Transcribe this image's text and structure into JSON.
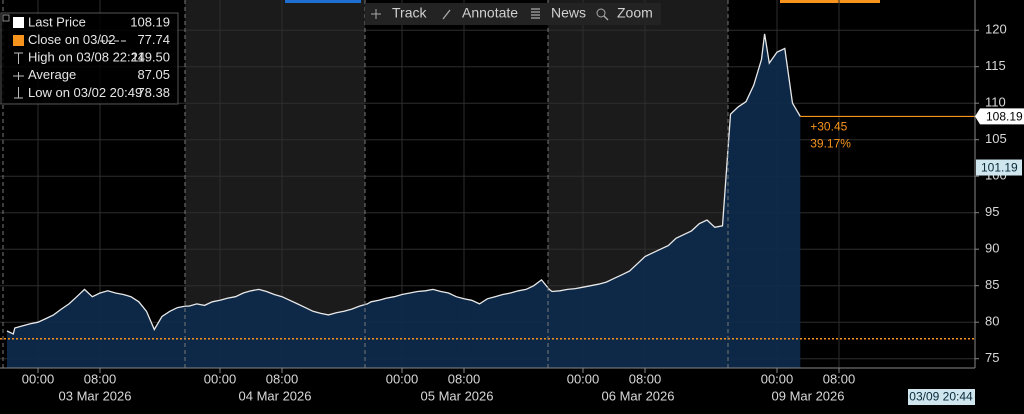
{
  "chart_data": {
    "type": "area",
    "toolbar": [
      "Track",
      "Annotate",
      "News",
      "Zoom"
    ],
    "legend": [
      {
        "name": "Last Price",
        "value": 108.19
      },
      {
        "name": "Close on 03/02",
        "value": 77.74
      },
      {
        "name": "High on 03/08 22:24",
        "value": 119.5,
        "value_label": "119.50"
      },
      {
        "name": "Average",
        "value": 87.05
      },
      {
        "name": "Low on 03/02 20:49",
        "value": 78.38
      }
    ],
    "x": [
      "2026-03-02 20:00",
      "2026-03-02 20:49",
      "2026-03-02 21:00",
      "2026-03-02 22:00",
      "2026-03-02 23:00",
      "2026-03-03 00:00",
      "2026-03-03 01:00",
      "2026-03-03 02:00",
      "2026-03-03 03:00",
      "2026-03-03 04:00",
      "2026-03-03 05:00",
      "2026-03-03 06:00",
      "2026-03-03 07:00",
      "2026-03-03 08:00",
      "2026-03-03 09:00",
      "2026-03-03 10:00",
      "2026-03-03 11:00",
      "2026-03-03 12:00",
      "2026-03-03 13:00",
      "2026-03-03 14:00",
      "2026-03-03 15:00",
      "2026-03-03 16:00",
      "2026-03-03 17:00",
      "2026-03-03 18:00",
      "2026-03-03 19:00",
      "2026-03-03 20:00",
      "2026-03-03 21:00",
      "2026-03-03 22:00",
      "2026-03-03 23:00",
      "2026-03-04 00:00",
      "2026-03-04 01:00",
      "2026-03-04 02:00",
      "2026-03-04 03:00",
      "2026-03-04 04:00",
      "2026-03-04 05:00",
      "2026-03-04 06:00",
      "2026-03-04 07:00",
      "2026-03-04 08:00",
      "2026-03-04 09:00",
      "2026-03-04 10:00",
      "2026-03-04 11:00",
      "2026-03-04 12:00",
      "2026-03-04 13:00",
      "2026-03-04 14:00",
      "2026-03-04 15:00",
      "2026-03-04 16:00",
      "2026-03-04 17:00",
      "2026-03-04 18:00",
      "2026-03-04 19:00",
      "2026-03-04 20:00",
      "2026-03-04 21:00",
      "2026-03-04 22:00",
      "2026-03-04 23:00",
      "2026-03-05 00:00",
      "2026-03-05 01:00",
      "2026-03-05 02:00",
      "2026-03-05 03:00",
      "2026-03-05 04:00",
      "2026-03-05 05:00",
      "2026-03-05 06:00",
      "2026-03-05 07:00",
      "2026-03-05 08:00",
      "2026-03-05 09:00",
      "2026-03-05 10:00",
      "2026-03-05 11:00",
      "2026-03-05 12:00",
      "2026-03-05 13:00",
      "2026-03-05 14:00",
      "2026-03-05 15:00",
      "2026-03-05 16:00",
      "2026-03-05 17:00",
      "2026-03-05 18:00",
      "2026-03-05 19:00",
      "2026-03-05 20:00",
      "2026-03-05 21:00",
      "2026-03-05 22:00",
      "2026-03-05 23:00",
      "2026-03-06 00:00",
      "2026-03-06 01:00",
      "2026-03-06 02:00",
      "2026-03-06 03:00",
      "2026-03-06 04:00",
      "2026-03-06 05:00",
      "2026-03-06 06:00",
      "2026-03-06 07:00",
      "2026-03-06 08:00",
      "2026-03-06 09:00",
      "2026-03-06 10:00",
      "2026-03-06 11:00",
      "2026-03-06 12:00",
      "2026-03-06 13:00",
      "2026-03-06 14:00",
      "2026-03-06 15:00",
      "2026-03-06 16:00",
      "2026-03-06 17:00",
      "2026-03-06 18:00",
      "2026-03-08 18:00",
      "2026-03-08 19:00",
      "2026-03-08 20:00",
      "2026-03-08 21:00",
      "2026-03-08 22:00",
      "2026-03-08 22:24",
      "2026-03-08 23:00",
      "2026-03-09 00:00",
      "2026-03-09 01:00",
      "2026-03-09 02:00",
      "2026-03-09 03:00"
    ],
    "series": [
      {
        "name": "Last Price",
        "color": "#e8e8e8",
        "fill": "#0e2a4a",
        "values": [
          78.8,
          78.38,
          79.2,
          79.5,
          79.8,
          80.0,
          80.5,
          81.0,
          81.8,
          82.5,
          83.5,
          84.5,
          83.5,
          84.0,
          84.3,
          84.0,
          83.8,
          83.5,
          82.8,
          81.5,
          79.0,
          80.8,
          81.5,
          82.0,
          82.2,
          82.2,
          82.5,
          82.3,
          82.8,
          83.0,
          83.3,
          83.5,
          84.0,
          84.3,
          84.5,
          84.2,
          83.8,
          83.5,
          83.0,
          82.5,
          82.0,
          81.5,
          81.2,
          81.0,
          81.3,
          81.5,
          81.8,
          82.2,
          82.5,
          82.8,
          83.0,
          83.3,
          83.5,
          83.8,
          84.0,
          84.2,
          84.3,
          84.5,
          84.2,
          84.0,
          83.5,
          83.2,
          83.0,
          82.5,
          83.2,
          83.5,
          83.8,
          84.0,
          84.3,
          84.5,
          85.0,
          85.8,
          84.5,
          84.2,
          84.3,
          84.5,
          84.6,
          84.8,
          85.0,
          85.2,
          85.5,
          86.0,
          86.5,
          87.0,
          88.0,
          89.0,
          89.5,
          90.0,
          90.5,
          91.5,
          92.0,
          92.5,
          93.5,
          94.0,
          93.0,
          93.2,
          108.5,
          109.5,
          110.2,
          112.5,
          116.0,
          119.5,
          115.5,
          117.0,
          117.5,
          110.0,
          108.19
        ]
      }
    ],
    "ylim": [
      74,
      124
    ],
    "yticks": [
      75,
      80,
      85,
      90,
      95,
      100,
      105,
      110,
      115,
      120
    ],
    "xticks": [
      {
        "value": "2026-03-03 00:00",
        "label": "00:00"
      },
      {
        "value": "2026-03-03 08:00",
        "label": "08:00"
      },
      {
        "value": "2026-03-04 00:00",
        "label": "00:00"
      },
      {
        "value": "2026-03-04 08:00",
        "label": "08:00"
      },
      {
        "value": "2026-03-05 00:00",
        "label": "00:00"
      },
      {
        "value": "2026-03-05 08:00",
        "label": "08:00"
      },
      {
        "value": "2026-03-06 00:00",
        "label": "00:00"
      },
      {
        "value": "2026-03-06 08:00",
        "label": "08:00"
      },
      {
        "value": "2026-03-09 00:00",
        "label": "00:00"
      },
      {
        "value": "2026-03-09 08:00",
        "label": "08:00"
      }
    ],
    "day_labels": [
      {
        "value": "2026-03-03",
        "label": "03 Mar 2026"
      },
      {
        "value": "2026-03-04",
        "label": "04 Mar 2026"
      },
      {
        "value": "2026-03-05",
        "label": "05 Mar 2026"
      },
      {
        "value": "2026-03-06",
        "label": "06 Mar 2026"
      },
      {
        "value": "2026-03-09",
        "label": "09 Mar 2026"
      }
    ],
    "change_annotation": {
      "value": 30.45,
      "label": "+30.45",
      "percent": 39.17,
      "percent_label": "39.17%",
      "color": "#f7941d"
    },
    "axis_marker": {
      "value": 101.19,
      "label": "101.19",
      "color": "#cfe6ee"
    },
    "reference_color": "#f7941d",
    "grid": true,
    "timestamp": "03/09 20:44"
  }
}
